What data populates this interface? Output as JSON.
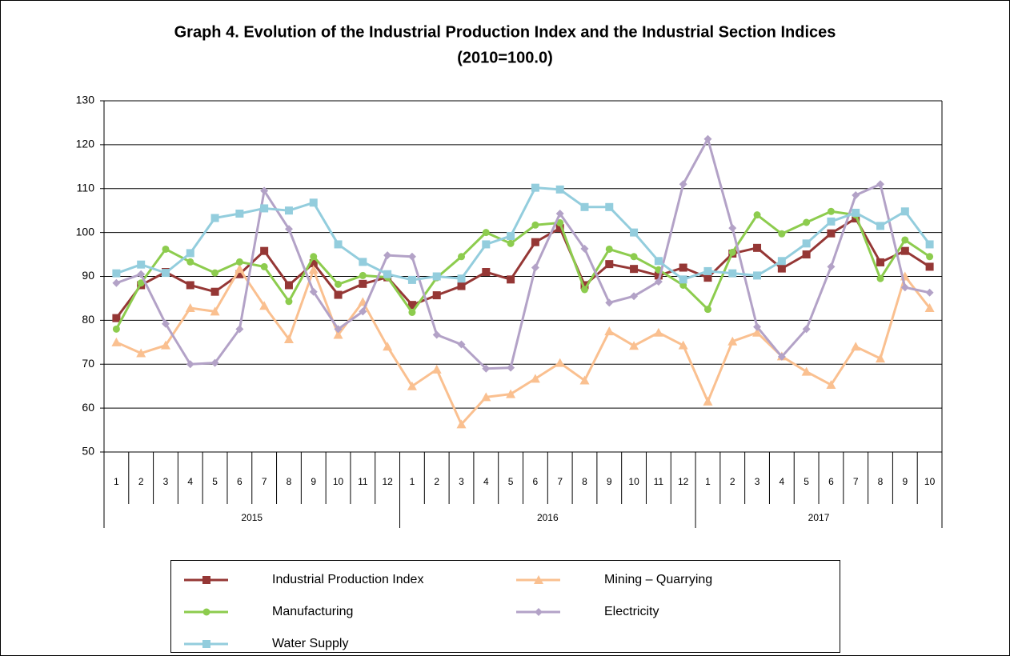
{
  "chart_data": {
    "type": "line",
    "title": "Graph 4. Evolution of the Industrial Production Index and the Industrial Section Indices",
    "subtitle": "(2010=100.0)",
    "categories": [
      "1",
      "2",
      "3",
      "4",
      "5",
      "6",
      "7",
      "8",
      "9",
      "10",
      "11",
      "12",
      "1",
      "2",
      "3",
      "4",
      "5",
      "6",
      "7",
      "8",
      "9",
      "10",
      "11",
      "12",
      "1",
      "2",
      "3",
      "4",
      "5",
      "6",
      "7",
      "8",
      "9",
      "10"
    ],
    "category_groups": [
      "2015",
      "2016",
      "2017"
    ],
    "ylim": [
      50,
      130
    ],
    "yticks": [
      50,
      60,
      70,
      80,
      90,
      100,
      110,
      120,
      130
    ],
    "grid": true,
    "legend": "bottom",
    "series": [
      {
        "name": "Industrial Production Index",
        "color": "#953735",
        "marker": "square",
        "values": [
          80.5,
          88,
          91,
          88,
          86.5,
          90.5,
          95.8,
          88,
          93,
          85.8,
          88.3,
          89.8,
          83.5,
          85.7,
          87.8,
          91,
          89.3,
          97.8,
          101,
          88,
          92.8,
          91.7,
          90.2,
          92,
          89.7,
          95.2,
          96.5,
          91.8,
          95,
          99.8,
          103.2,
          93.2,
          95.8,
          92.2
        ]
      },
      {
        "name": "Mining – Quarrying",
        "color": "#fac090",
        "marker": "triangle",
        "values": [
          75,
          72.5,
          74.3,
          82.8,
          82,
          91.7,
          83.3,
          75.7,
          91.5,
          76.7,
          84.2,
          74,
          65,
          68.8,
          56.3,
          62.5,
          63.2,
          66.7,
          70.3,
          66.3,
          77.5,
          74.2,
          77.2,
          74.3,
          61.5,
          75.2,
          77.2,
          71.8,
          68.3,
          65.3,
          74,
          71.3,
          90,
          82.8
        ]
      },
      {
        "name": "Manufacturing",
        "color": "#8dcc4e",
        "marker": "circle",
        "values": [
          78,
          88.5,
          96.2,
          93.3,
          90.8,
          93.3,
          92.2,
          84.3,
          94.5,
          88.2,
          90.2,
          89.8,
          81.8,
          89.7,
          94.5,
          100,
          97.5,
          101.7,
          102.2,
          87,
          96.2,
          94.5,
          91.5,
          88,
          82.5,
          95.5,
          104,
          99.7,
          102.3,
          104.8,
          104,
          89.5,
          98.3,
          94.5
        ]
      },
      {
        "name": "Electricity",
        "color": "#b3a2c7",
        "marker": "diamond",
        "values": [
          88.5,
          90.5,
          79.2,
          70,
          70.3,
          78,
          109.5,
          100.8,
          86.5,
          78,
          82,
          94.8,
          94.5,
          76.7,
          74.5,
          69,
          69.2,
          92,
          104.3,
          96.3,
          84,
          85.5,
          88.8,
          111,
          121.3,
          101,
          78.5,
          71.7,
          78,
          92.2,
          108.5,
          111,
          87.5,
          86.3
        ]
      },
      {
        "name": "Water Supply",
        "color": "#93cddd",
        "marker": "square",
        "values": [
          90.7,
          92.7,
          90.8,
          95.3,
          103.3,
          104.3,
          105.5,
          105,
          106.8,
          97.3,
          93.3,
          90.5,
          89.2,
          90,
          89.5,
          97.3,
          99.2,
          110.2,
          109.8,
          105.8,
          105.8,
          100,
          93.5,
          89.3,
          91.2,
          90.7,
          90.2,
          93.5,
          97.5,
          102.5,
          104.5,
          101.5,
          104.8,
          97.3
        ]
      }
    ]
  }
}
